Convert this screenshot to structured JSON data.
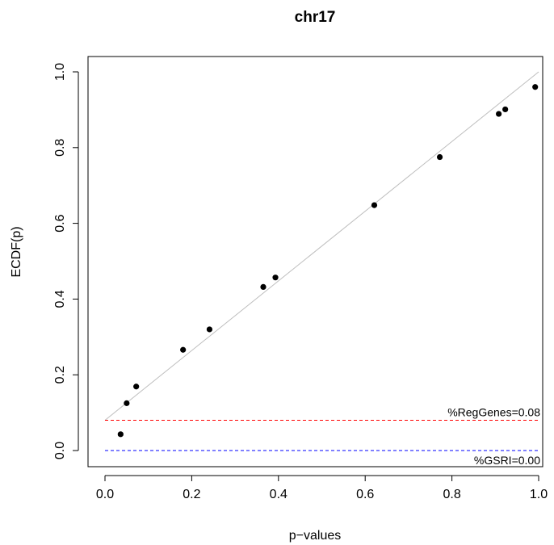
{
  "chart_data": {
    "type": "scatter",
    "title": "chr17",
    "xlabel": "p−values",
    "ylabel": "ECDF(p)",
    "xlim": [
      0,
      1
    ],
    "ylim": [
      0,
      1
    ],
    "x_ticks": [
      "0.0",
      "0.2",
      "0.4",
      "0.6",
      "0.8",
      "1.0"
    ],
    "y_ticks": [
      "0.0",
      "0.2",
      "0.4",
      "0.6",
      "0.8",
      "1.0"
    ],
    "grid": false,
    "points": [
      {
        "x": 0.036,
        "y": 0.043
      },
      {
        "x": 0.05,
        "y": 0.125
      },
      {
        "x": 0.072,
        "y": 0.169
      },
      {
        "x": 0.18,
        "y": 0.266
      },
      {
        "x": 0.241,
        "y": 0.32
      },
      {
        "x": 0.365,
        "y": 0.432
      },
      {
        "x": 0.393,
        "y": 0.457
      },
      {
        "x": 0.621,
        "y": 0.648
      },
      {
        "x": 0.772,
        "y": 0.775
      },
      {
        "x": 0.908,
        "y": 0.889
      },
      {
        "x": 0.923,
        "y": 0.901
      },
      {
        "x": 0.992,
        "y": 0.96
      }
    ],
    "fit_line": {
      "x1": 0,
      "y1": 0.08,
      "x2": 1,
      "y2": 1.0,
      "color": "#bebebe"
    },
    "reference_lines": [
      {
        "y": 0.08,
        "color": "#ff0000",
        "style": "dashed",
        "label": "%RegGenes=0.08"
      },
      {
        "y": 0.0,
        "color": "#0000ff",
        "style": "dashed",
        "label": "%GSRI=0.00"
      }
    ],
    "point_color": "#000000"
  }
}
